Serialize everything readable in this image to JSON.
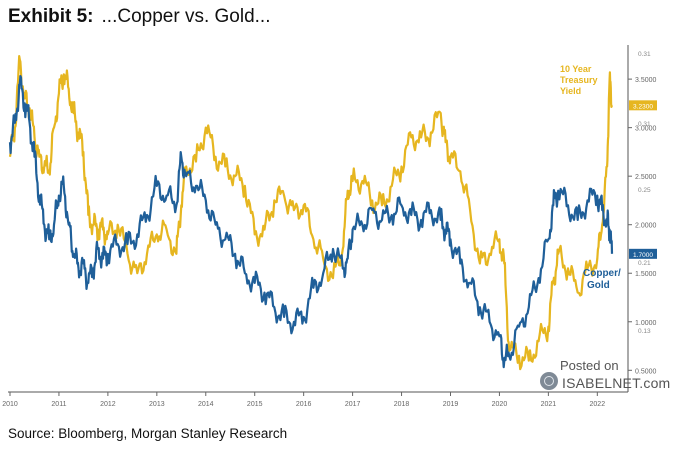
{
  "header": {
    "label": "Exhibit 5:",
    "text": "...Copper vs. Gold..."
  },
  "source": "Source: Bloomberg, Morgan Stanley Research",
  "watermark": {
    "posted": "Posted on",
    "site": "ISABELNET.com"
  },
  "colors": {
    "copper_gold": "#1f5f99",
    "treasury": "#e6b620",
    "axis": "#666666"
  },
  "chart_data": {
    "type": "line",
    "x_ticks": [
      "2010",
      "2011",
      "2012",
      "2013",
      "2014",
      "2015",
      "2016",
      "2017",
      "2018",
      "2019",
      "2020",
      "2021",
      "2022"
    ],
    "xlim": [
      2010,
      2022.3
    ],
    "right_axis_ticks": [
      "3.5000",
      "3.0000",
      "2.5000",
      "2.0000",
      "1.5000",
      "1.0000",
      "0.5000"
    ],
    "ylim_right": [
      0.4,
      3.8
    ],
    "secondary_ticks": [
      "0.31",
      "0.31",
      "0.25",
      "0.21",
      "0.13"
    ],
    "legend_placement": "inline labels at right end of series",
    "last_values": {
      "treasury": "3.2300",
      "copper_gold": "1.7000"
    },
    "series": [
      {
        "name": "10 Year Treasury Yield",
        "x": [
          2010.0,
          2010.1,
          2010.2,
          2010.3,
          2010.4,
          2010.5,
          2010.6,
          2010.7,
          2010.8,
          2010.9,
          2011.0,
          2011.1,
          2011.2,
          2011.3,
          2011.4,
          2011.5,
          2011.6,
          2011.7,
          2011.8,
          2011.9,
          2012.0,
          2012.2,
          2012.4,
          2012.6,
          2012.8,
          2013.0,
          2013.2,
          2013.4,
          2013.5,
          2013.6,
          2013.8,
          2014.0,
          2014.2,
          2014.4,
          2014.6,
          2014.8,
          2015.0,
          2015.2,
          2015.4,
          2015.6,
          2015.8,
          2016.0,
          2016.2,
          2016.4,
          2016.6,
          2016.8,
          2016.9,
          2017.0,
          2017.2,
          2017.4,
          2017.6,
          2017.8,
          2018.0,
          2018.2,
          2018.4,
          2018.6,
          2018.8,
          2018.9,
          2019.0,
          2019.2,
          2019.4,
          2019.6,
          2019.8,
          2020.0,
          2020.1,
          2020.2,
          2020.4,
          2020.6,
          2020.8,
          2021.0,
          2021.1,
          2021.2,
          2021.4,
          2021.6,
          2021.8,
          2022.0,
          2022.1,
          2022.2,
          2022.25,
          2022.3
        ],
        "values": [
          2.7,
          3.0,
          3.7,
          3.3,
          3.2,
          2.9,
          2.7,
          2.6,
          2.55,
          3.0,
          3.35,
          3.55,
          3.4,
          3.15,
          2.95,
          2.75,
          2.1,
          2.0,
          1.95,
          1.95,
          1.9,
          2.0,
          1.7,
          1.5,
          1.7,
          1.9,
          1.95,
          1.7,
          2.2,
          2.6,
          2.65,
          3.0,
          2.7,
          2.6,
          2.5,
          2.4,
          1.9,
          1.95,
          2.25,
          2.3,
          2.15,
          2.2,
          1.85,
          1.65,
          1.45,
          1.75,
          2.35,
          2.45,
          2.45,
          2.25,
          2.2,
          2.4,
          2.6,
          2.9,
          2.9,
          2.95,
          3.15,
          2.85,
          2.7,
          2.55,
          2.15,
          1.6,
          1.7,
          1.85,
          1.6,
          0.7,
          0.65,
          0.6,
          0.8,
          0.95,
          1.4,
          1.7,
          1.55,
          1.3,
          1.55,
          1.65,
          2.0,
          2.6,
          3.5,
          3.23
        ]
      },
      {
        "name": "Copper/ Gold",
        "x": [
          2010.0,
          2010.1,
          2010.2,
          2010.3,
          2010.4,
          2010.5,
          2010.6,
          2010.7,
          2010.8,
          2010.9,
          2011.0,
          2011.1,
          2011.2,
          2011.3,
          2011.4,
          2011.5,
          2011.6,
          2011.7,
          2011.8,
          2011.9,
          2012.0,
          2012.2,
          2012.4,
          2012.6,
          2012.8,
          2013.0,
          2013.2,
          2013.4,
          2013.5,
          2013.6,
          2013.8,
          2014.0,
          2014.2,
          2014.4,
          2014.6,
          2014.8,
          2015.0,
          2015.2,
          2015.4,
          2015.6,
          2015.8,
          2016.0,
          2016.2,
          2016.4,
          2016.6,
          2016.8,
          2016.9,
          2017.0,
          2017.2,
          2017.4,
          2017.6,
          2017.8,
          2018.0,
          2018.2,
          2018.4,
          2018.6,
          2018.8,
          2018.9,
          2019.0,
          2019.2,
          2019.4,
          2019.6,
          2019.8,
          2020.0,
          2020.1,
          2020.2,
          2020.4,
          2020.6,
          2020.8,
          2021.0,
          2021.1,
          2021.2,
          2021.4,
          2021.6,
          2021.8,
          2022.0,
          2022.1,
          2022.2,
          2022.25,
          2022.3
        ],
        "values": [
          2.85,
          3.05,
          3.45,
          3.25,
          3.05,
          2.7,
          2.3,
          2.0,
          1.85,
          2.0,
          2.3,
          2.4,
          2.0,
          1.7,
          1.55,
          1.6,
          1.4,
          1.55,
          1.75,
          1.65,
          1.7,
          1.8,
          1.8,
          1.9,
          2.1,
          2.4,
          2.3,
          2.2,
          2.7,
          2.5,
          2.4,
          2.25,
          2.0,
          1.85,
          1.7,
          1.5,
          1.4,
          1.3,
          1.15,
          1.05,
          1.0,
          1.05,
          1.35,
          1.5,
          1.75,
          1.55,
          1.65,
          1.95,
          2.0,
          2.15,
          2.05,
          2.1,
          2.2,
          2.1,
          2.05,
          2.15,
          2.05,
          1.95,
          1.85,
          1.6,
          1.4,
          1.15,
          1.0,
          0.85,
          0.6,
          0.65,
          0.95,
          1.15,
          1.45,
          1.85,
          2.2,
          2.35,
          2.2,
          2.05,
          2.25,
          2.3,
          2.15,
          2.05,
          1.95,
          1.7
        ]
      }
    ],
    "annotations": [
      "10 Year Treasury Yield",
      "Copper/ Gold"
    ]
  }
}
